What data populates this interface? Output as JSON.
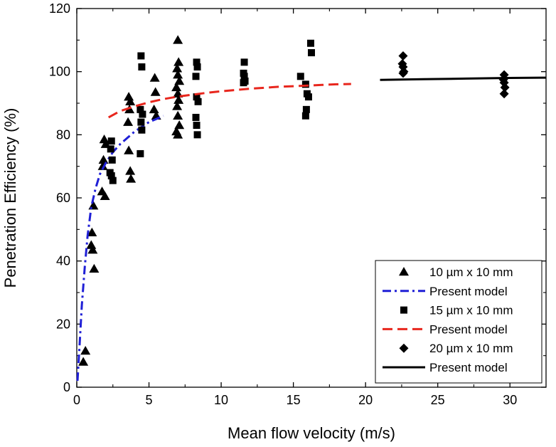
{
  "chart_data": {
    "type": "scatter",
    "title": "",
    "xlabel": "Mean flow velocity (m/s)",
    "ylabel": "Penetration Efficiency (%)",
    "xlim": [
      0,
      32.5
    ],
    "ylim": [
      0,
      120
    ],
    "x_ticks": [
      0,
      5,
      10,
      15,
      20,
      25,
      30
    ],
    "y_ticks": [
      0,
      20,
      40,
      60,
      80,
      100,
      120
    ],
    "grid": false,
    "legend_position": "bottom-right",
    "series": [
      {
        "name": "10 µm x 10 mm",
        "kind": "scatter",
        "marker": "triangle",
        "color": "#000000",
        "points": [
          [
            0.45,
            8
          ],
          [
            0.6,
            11.5
          ],
          [
            1.05,
            49
          ],
          [
            1.0,
            45
          ],
          [
            1.1,
            43.5
          ],
          [
            1.2,
            37.5
          ],
          [
            1.15,
            57.5
          ],
          [
            1.9,
            78.5
          ],
          [
            2.0,
            77
          ],
          [
            1.85,
            72
          ],
          [
            1.8,
            70
          ],
          [
            1.75,
            62
          ],
          [
            1.95,
            60.5
          ],
          [
            3.6,
            92
          ],
          [
            3.7,
            90.5
          ],
          [
            3.65,
            88
          ],
          [
            3.55,
            84
          ],
          [
            3.6,
            75
          ],
          [
            3.7,
            68.5
          ],
          [
            3.75,
            66
          ],
          [
            5.4,
            98
          ],
          [
            5.45,
            93.5
          ],
          [
            5.35,
            88
          ],
          [
            5.5,
            86
          ],
          [
            7.0,
            110
          ],
          [
            7.05,
            103
          ],
          [
            6.95,
            101
          ],
          [
            7.0,
            99
          ],
          [
            7.1,
            97
          ],
          [
            6.9,
            95
          ],
          [
            7.0,
            93
          ],
          [
            7.05,
            91
          ],
          [
            6.95,
            89
          ],
          [
            7.0,
            86
          ],
          [
            7.1,
            83
          ],
          [
            6.9,
            81
          ],
          [
            7.0,
            80
          ]
        ]
      },
      {
        "name": "Present model",
        "kind": "line",
        "dash": "dashdot",
        "color": "#1f1fd6",
        "points": [
          [
            0.05,
            2
          ],
          [
            0.2,
            14
          ],
          [
            0.35,
            26
          ],
          [
            0.55,
            38
          ],
          [
            0.75,
            48
          ],
          [
            1.0,
            57
          ],
          [
            1.3,
            63
          ],
          [
            1.6,
            67.5
          ],
          [
            2.0,
            71
          ],
          [
            2.5,
            74.5
          ],
          [
            3.0,
            77
          ],
          [
            3.5,
            79
          ],
          [
            4.0,
            81
          ],
          [
            4.5,
            82.5
          ],
          [
            5.0,
            84
          ],
          [
            5.5,
            85
          ],
          [
            6.0,
            86
          ]
        ]
      },
      {
        "name": "15 µm x 10 mm",
        "kind": "scatter",
        "marker": "square",
        "color": "#000000",
        "points": [
          [
            2.4,
            78
          ],
          [
            2.35,
            75.5
          ],
          [
            2.45,
            72
          ],
          [
            2.3,
            68
          ],
          [
            2.4,
            67
          ],
          [
            2.5,
            65.5
          ],
          [
            4.45,
            105
          ],
          [
            4.5,
            101.5
          ],
          [
            4.4,
            88
          ],
          [
            4.55,
            86.5
          ],
          [
            4.45,
            84
          ],
          [
            4.5,
            81.5
          ],
          [
            4.4,
            74
          ],
          [
            8.3,
            103
          ],
          [
            8.35,
            101.5
          ],
          [
            8.25,
            98.5
          ],
          [
            8.3,
            92
          ],
          [
            8.4,
            90.5
          ],
          [
            8.25,
            85.5
          ],
          [
            8.3,
            83
          ],
          [
            8.35,
            80
          ],
          [
            11.6,
            103
          ],
          [
            11.55,
            99.5
          ],
          [
            11.6,
            98.5
          ],
          [
            11.65,
            97
          ],
          [
            11.55,
            96.5
          ],
          [
            15.5,
            98.5
          ],
          [
            15.85,
            96
          ],
          [
            15.95,
            93
          ],
          [
            16.05,
            92
          ],
          [
            15.9,
            88
          ],
          [
            15.85,
            86
          ],
          [
            16.2,
            109
          ],
          [
            16.25,
            106
          ]
        ]
      },
      {
        "name": "Present model",
        "kind": "line",
        "dash": "dash",
        "color": "#e8261d",
        "points": [
          [
            2.2,
            85.5
          ],
          [
            3.0,
            87.5
          ],
          [
            4.0,
            89
          ],
          [
            5.0,
            90.3
          ],
          [
            6.0,
            91.3
          ],
          [
            7.0,
            92.1
          ],
          [
            8.0,
            92.7
          ],
          [
            9.0,
            93.3
          ],
          [
            10.0,
            93.8
          ],
          [
            11.0,
            94.2
          ],
          [
            12.0,
            94.6
          ],
          [
            13.0,
            94.9
          ],
          [
            14.0,
            95.2
          ],
          [
            15.0,
            95.4
          ],
          [
            16.0,
            95.6
          ],
          [
            17.0,
            95.8
          ],
          [
            18.0,
            96.0
          ],
          [
            19.0,
            96.1
          ]
        ]
      },
      {
        "name": "20 µm x 10 mm",
        "kind": "scatter",
        "marker": "diamond",
        "color": "#000000",
        "points": [
          [
            22.6,
            105
          ],
          [
            22.55,
            102.5
          ],
          [
            22.6,
            101.5
          ],
          [
            22.65,
            100
          ],
          [
            22.6,
            99.5
          ],
          [
            29.6,
            99
          ],
          [
            29.55,
            97.5
          ],
          [
            29.6,
            96.5
          ],
          [
            29.65,
            95
          ],
          [
            29.6,
            93
          ]
        ]
      },
      {
        "name": "Present model",
        "kind": "line",
        "dash": "solid",
        "color": "#000000",
        "points": [
          [
            21.0,
            97.4
          ],
          [
            24.0,
            97.6
          ],
          [
            27.0,
            97.8
          ],
          [
            30.0,
            98.0
          ],
          [
            32.5,
            98.1
          ]
        ]
      }
    ]
  }
}
